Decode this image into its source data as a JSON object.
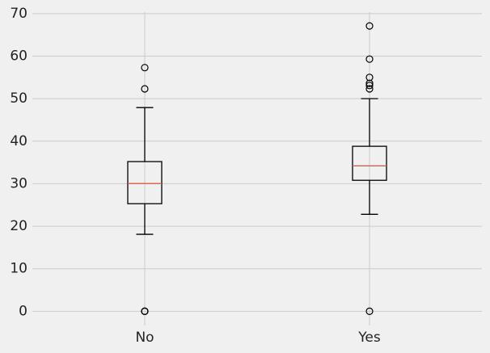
{
  "chart_data": {
    "type": "box",
    "categories": [
      "No",
      "Yes"
    ],
    "boxes": [
      {
        "whislo": 18.1,
        "q1": 25.3,
        "med": 30.05,
        "q3": 35.2,
        "whishi": 47.9,
        "fliers": [
          57.3,
          52.3,
          0,
          0,
          0
        ]
      },
      {
        "whislo": 22.8,
        "q1": 30.8,
        "med": 34.2,
        "q3": 38.8,
        "whishi": 50.0,
        "fliers": [
          67.1,
          59.3,
          55.0,
          53.6,
          53.1,
          52.3,
          0
        ]
      }
    ],
    "box_color": "#000000",
    "median_color": "#fc4f30",
    "ylim": [
      -3.35,
      70.35
    ],
    "yticks": [
      0,
      10,
      20,
      30,
      40,
      50,
      60,
      70
    ],
    "grid": true
  }
}
